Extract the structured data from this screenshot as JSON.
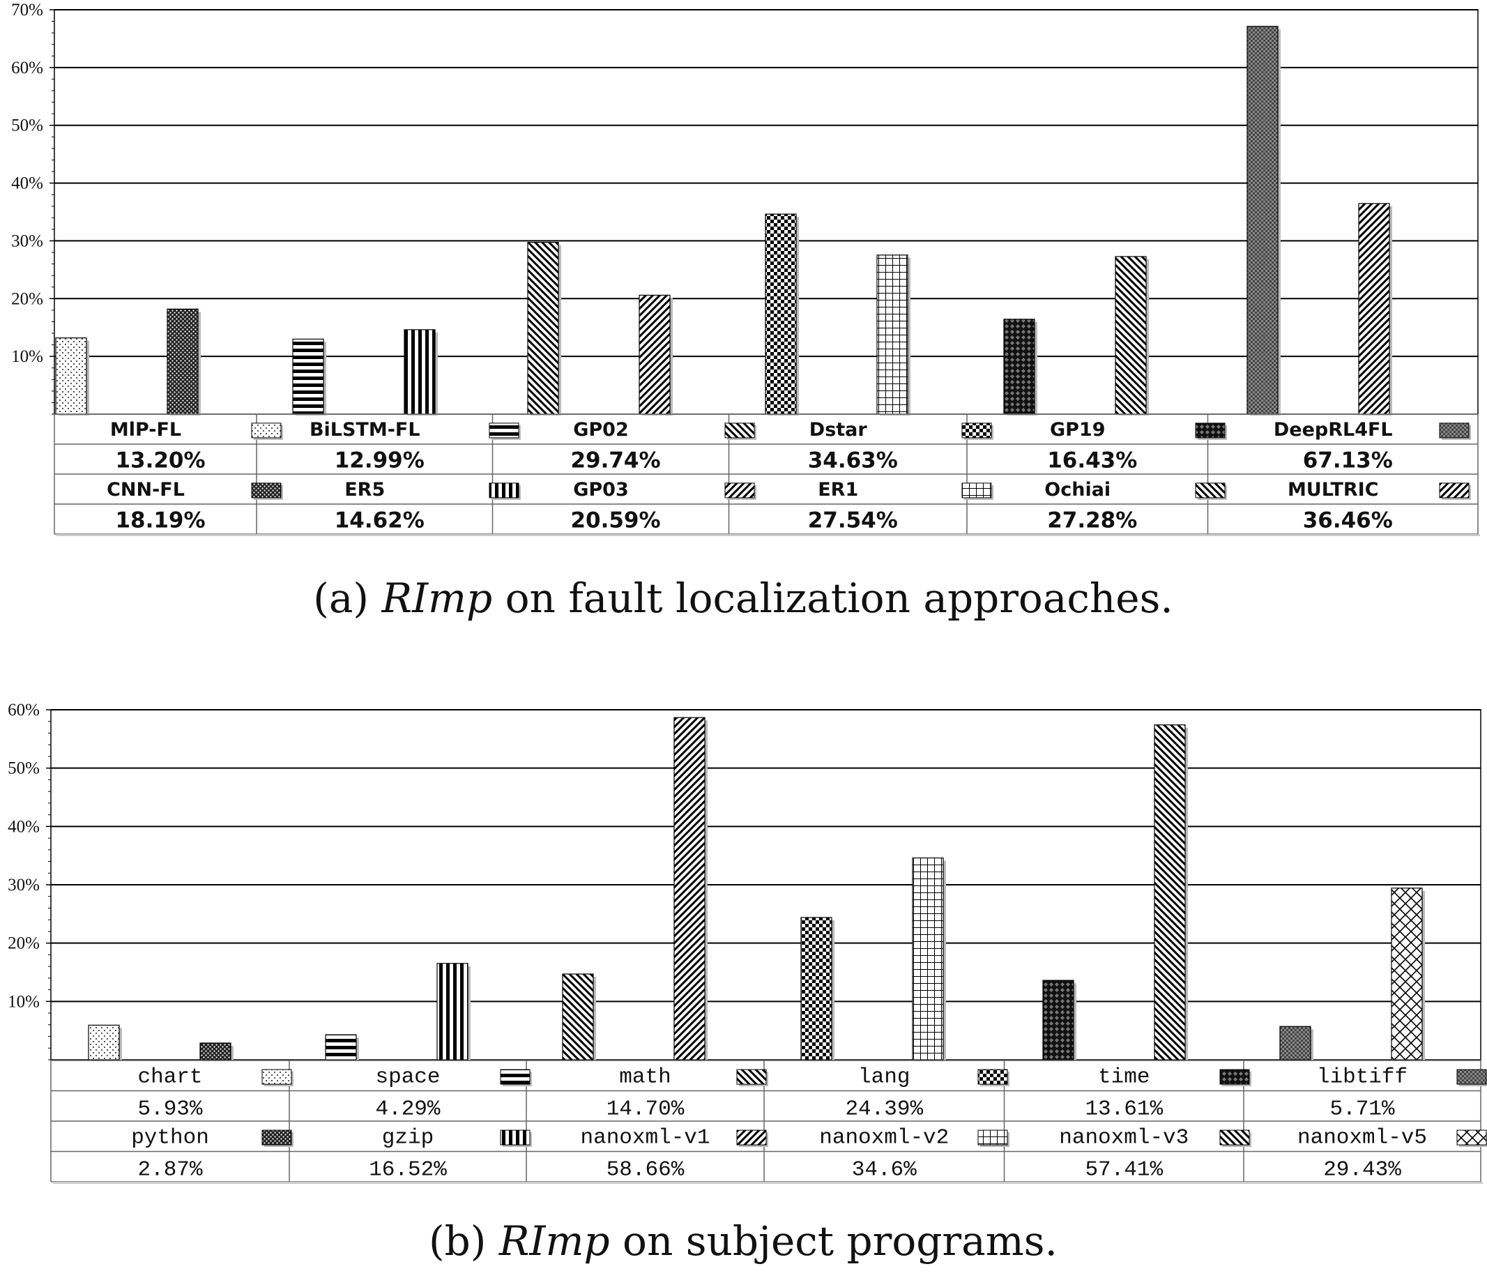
{
  "chart_data": [
    {
      "type": "bar",
      "caption_prefix": "(a)",
      "caption_metric": "RImp",
      "caption_rest": "on fault localization approaches.",
      "ylim": [
        0,
        70
      ],
      "yticks": [
        "10%",
        "20%",
        "30%",
        "40%",
        "50%",
        "60%",
        "70%"
      ],
      "ytick_values": [
        10,
        20,
        30,
        40,
        50,
        60,
        70
      ],
      "grid": true,
      "series": [
        {
          "name": "MlP-FL",
          "value": 13.2,
          "label": "13.20%",
          "pattern": "dots-light"
        },
        {
          "name": "CNN-FL",
          "value": 18.19,
          "label": "18.19%",
          "pattern": "dots-dense"
        },
        {
          "name": "BiLSTM-FL",
          "value": 12.99,
          "label": "12.99%",
          "pattern": "h-stripes"
        },
        {
          "name": "ER5",
          "value": 14.62,
          "label": "14.62%",
          "pattern": "v-stripes"
        },
        {
          "name": "GP02",
          "value": 29.74,
          "label": "29.74%",
          "pattern": "diag-back"
        },
        {
          "name": "GP03",
          "value": 20.59,
          "label": "20.59%",
          "pattern": "diag-fwd"
        },
        {
          "name": "Dstar",
          "value": 34.63,
          "label": "34.63%",
          "pattern": "checker"
        },
        {
          "name": "ER1",
          "value": 27.54,
          "label": "27.54%",
          "pattern": "grid"
        },
        {
          "name": "GP19",
          "value": 16.43,
          "label": "16.43%",
          "pattern": "diamond"
        },
        {
          "name": "Ochiai",
          "value": 27.28,
          "label": "27.28%",
          "pattern": "diag-back"
        },
        {
          "name": "DeepRL4FL",
          "value": 67.13,
          "label": "67.13%",
          "pattern": "weave"
        },
        {
          "name": "MULTRIC",
          "value": 36.46,
          "label": "36.46%",
          "pattern": "diag-fwd"
        }
      ]
    },
    {
      "type": "bar",
      "caption_prefix": "(b)",
      "caption_metric": "RImp",
      "caption_rest": "on subject programs.",
      "ylim": [
        0,
        60
      ],
      "yticks": [
        "10%",
        "20%",
        "30%",
        "40%",
        "50%",
        "60%"
      ],
      "ytick_values": [
        10,
        20,
        30,
        40,
        50,
        60
      ],
      "grid": true,
      "series": [
        {
          "name": "chart",
          "value": 5.93,
          "label": "5.93%",
          "pattern": "dots-light"
        },
        {
          "name": "python",
          "value": 2.87,
          "label": "2.87%",
          "pattern": "dots-dense"
        },
        {
          "name": "space",
          "value": 4.29,
          "label": "4.29%",
          "pattern": "h-stripes"
        },
        {
          "name": "gzip",
          "value": 16.52,
          "label": "16.52%",
          "pattern": "v-stripes"
        },
        {
          "name": "math",
          "value": 14.7,
          "label": "14.70%",
          "pattern": "diag-back"
        },
        {
          "name": "nanoxml-v1",
          "value": 58.66,
          "label": "58.66%",
          "pattern": "diag-fwd"
        },
        {
          "name": "lang",
          "value": 24.39,
          "label": "24.39%",
          "pattern": "checker"
        },
        {
          "name": "nanoxml-v2",
          "value": 34.6,
          "label": "34.6%",
          "pattern": "grid"
        },
        {
          "name": "time",
          "value": 13.61,
          "label": "13.61%",
          "pattern": "diamond"
        },
        {
          "name": "nanoxml-v3",
          "value": 57.41,
          "label": "57.41%",
          "pattern": "diag-back"
        },
        {
          "name": "libtiff",
          "value": 5.71,
          "label": "5.71%",
          "pattern": "weave"
        },
        {
          "name": "nanoxml-v5",
          "value": 29.43,
          "label": "29.43%",
          "pattern": "crosshatch"
        }
      ]
    }
  ]
}
